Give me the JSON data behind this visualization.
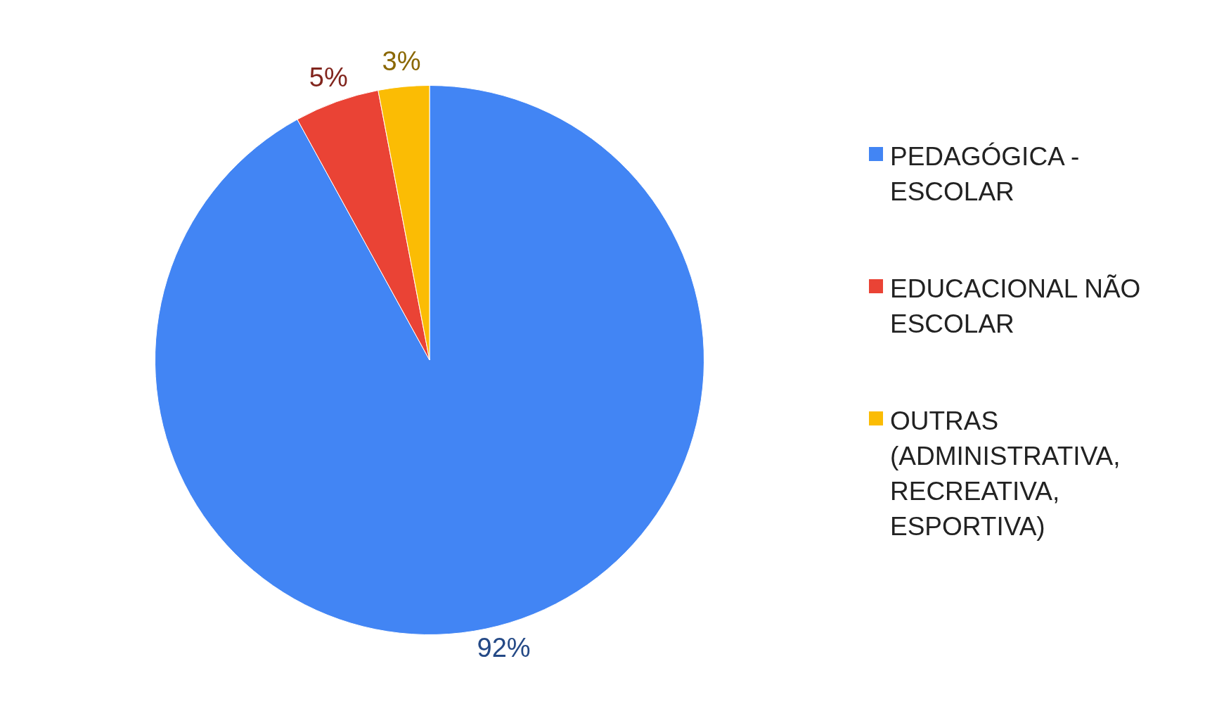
{
  "chart_data": {
    "type": "pie",
    "categories": [
      "PEDAGÓGICA - ESCOLAR",
      "EDUCACIONAL NÃO ESCOLAR",
      "OUTRAS (ADMINISTRATIVA, RECREATIVA, ESPORTIVA)"
    ],
    "values": [
      92,
      5,
      3
    ],
    "colors": [
      "#4285f4",
      "#ea4335",
      "#fbbc04"
    ],
    "value_labels": [
      "92%",
      "5%",
      "3%"
    ],
    "legend": "right"
  }
}
